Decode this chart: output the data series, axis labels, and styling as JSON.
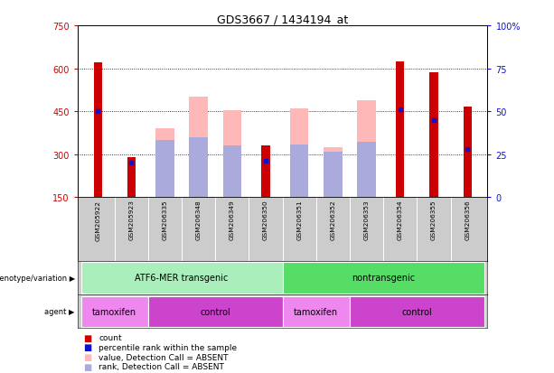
{
  "title": "GDS3667 / 1434194_at",
  "samples": [
    "GSM205922",
    "GSM205923",
    "GSM206335",
    "GSM206348",
    "GSM206349",
    "GSM206350",
    "GSM206351",
    "GSM206352",
    "GSM206353",
    "GSM206354",
    "GSM206355",
    "GSM206356"
  ],
  "red_count": [
    620,
    290,
    null,
    null,
    null,
    330,
    null,
    null,
    null,
    625,
    585,
    465
  ],
  "blue_pct": [
    50,
    20,
    null,
    null,
    null,
    21,
    null,
    null,
    null,
    51,
    45,
    28
  ],
  "pink_value": [
    null,
    null,
    390,
    500,
    455,
    null,
    460,
    325,
    490,
    null,
    null,
    null
  ],
  "lightblue_rank_val": [
    null,
    null,
    350,
    360,
    330,
    null,
    335,
    310,
    345,
    null,
    null,
    null
  ],
  "ylim_left": [
    150,
    750
  ],
  "ylim_right": [
    0,
    100
  ],
  "yticks_left": [
    150,
    300,
    450,
    600,
    750
  ],
  "yticks_right": [
    0,
    25,
    50,
    75,
    100
  ],
  "ytick_labels_left": [
    "150",
    "300",
    "450",
    "600",
    "750"
  ],
  "ytick_labels_right": [
    "0",
    "25",
    "50",
    "75",
    "100%"
  ],
  "grid_values": [
    300,
    450,
    600
  ],
  "red_color": "#cc0000",
  "blue_color": "#1111cc",
  "pink_color": "#ffb8b8",
  "lightblue_color": "#aaaadd",
  "green_light": "#aaeebb",
  "green_dark": "#55dd66",
  "magenta_light": "#ee88ee",
  "magenta_dark": "#cc44cc",
  "gray_sample": "#cccccc",
  "bar_width": 0.55,
  "legend_items": [
    {
      "label": "count",
      "color": "#cc0000"
    },
    {
      "label": "percentile rank within the sample",
      "color": "#1111cc"
    },
    {
      "label": "value, Detection Call = ABSENT",
      "color": "#ffb8b8"
    },
    {
      "label": "rank, Detection Call = ABSENT",
      "color": "#aaaadd"
    }
  ]
}
